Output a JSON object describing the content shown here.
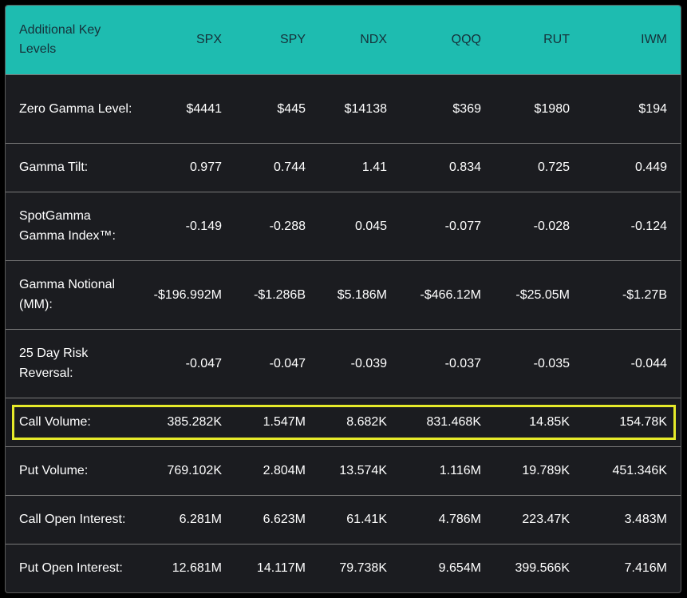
{
  "header": {
    "label": "Additional Key Levels",
    "columns": [
      "SPX",
      "SPY",
      "NDX",
      "QQQ",
      "RUT",
      "IWM"
    ]
  },
  "rows": [
    {
      "label": "Zero Gamma Level:",
      "values": [
        "$4441",
        "$445",
        "$14138",
        "$369",
        "$1980",
        "$194"
      ]
    },
    {
      "label": "Gamma Tilt:",
      "values": [
        "0.977",
        "0.744",
        "1.41",
        "0.834",
        "0.725",
        "0.449"
      ]
    },
    {
      "label": "SpotGamma Gamma Index™:",
      "values": [
        "-0.149",
        "-0.288",
        "0.045",
        "-0.077",
        "-0.028",
        "-0.124"
      ]
    },
    {
      "label": "Gamma Notional (MM):",
      "values": [
        "-$196.992M",
        "-$1.286B",
        "$5.186M",
        "-$466.12M",
        "-$25.05M",
        "-$1.27B"
      ]
    },
    {
      "label": "25 Day Risk Reversal:",
      "values": [
        "-0.047",
        "-0.047",
        "-0.039",
        "-0.037",
        "-0.035",
        "-0.044"
      ]
    },
    {
      "label": "Call Volume:",
      "values": [
        "385.282K",
        "1.547M",
        "8.682K",
        "831.468K",
        "14.85K",
        "154.78K"
      ]
    },
    {
      "label": "Put Volume:",
      "values": [
        "769.102K",
        "2.804M",
        "13.574K",
        "1.116M",
        "19.789K",
        "451.346K"
      ]
    },
    {
      "label": "Call Open Interest:",
      "values": [
        "6.281M",
        "6.623M",
        "61.41K",
        "4.786M",
        "223.47K",
        "3.483M"
      ]
    },
    {
      "label": "Put Open Interest:",
      "values": [
        "12.681M",
        "14.117M",
        "79.738K",
        "9.654M",
        "399.566K",
        "7.416M"
      ]
    }
  ],
  "colors": {
    "header_bg": "#1ebcb0",
    "header_text": "#16313a",
    "body_bg": "#1b1c20",
    "highlight": "#e6ea2a"
  }
}
